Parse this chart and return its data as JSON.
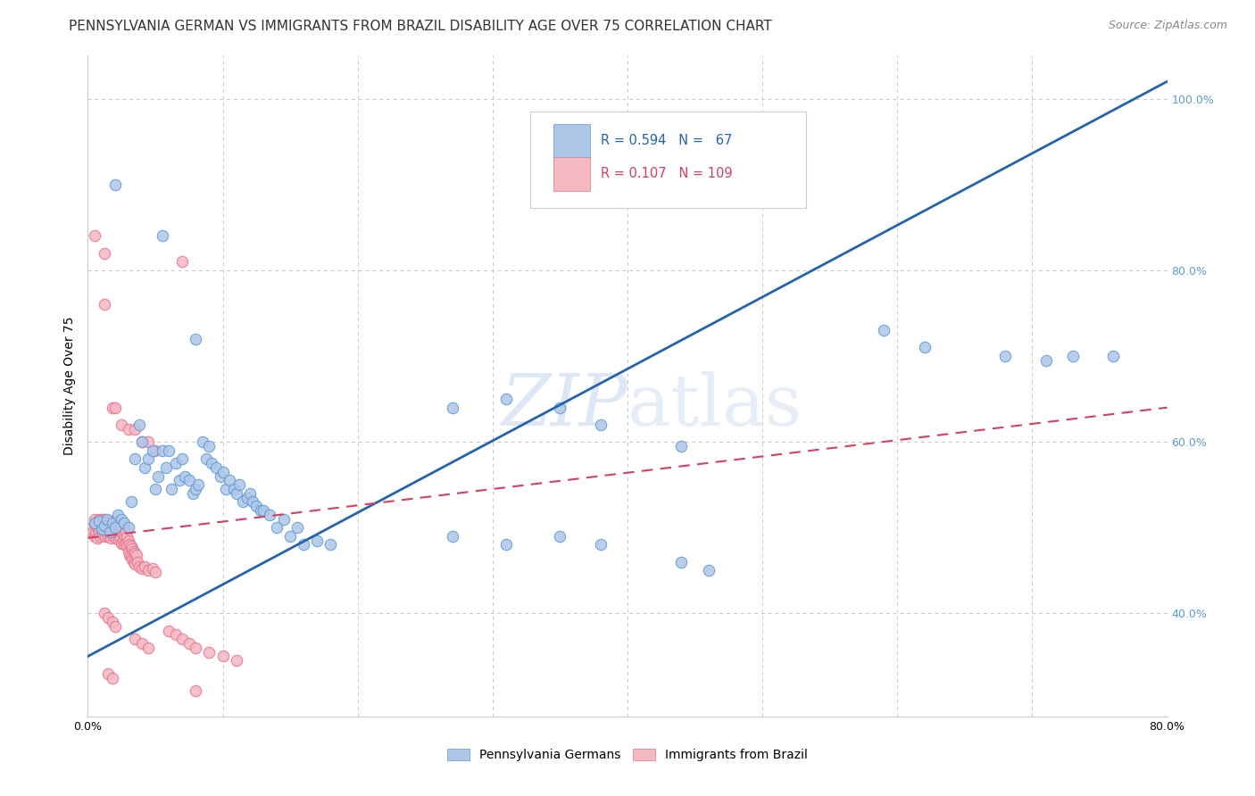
{
  "title": "PENNSYLVANIA GERMAN VS IMMIGRANTS FROM BRAZIL DISABILITY AGE OVER 75 CORRELATION CHART",
  "source": "Source: ZipAtlas.com",
  "ylabel": "Disability Age Over 75",
  "x_min": 0.0,
  "x_max": 0.8,
  "y_min": 0.28,
  "y_max": 1.05,
  "blue_color": "#aec6e8",
  "blue_edge_color": "#5b9bd5",
  "pink_color": "#f4b8c1",
  "pink_edge_color": "#e87090",
  "blue_line_color": "#2563ae",
  "pink_line_color": "#d44060",
  "watermark_color": "#c8d8ee",
  "grid_color": "#c8c8c8",
  "background_color": "#ffffff",
  "right_tick_color": "#5b9bd5",
  "title_color": "#333333",
  "source_color": "#888888",
  "blue_line_x": [
    0.0,
    0.8
  ],
  "blue_line_y": [
    0.35,
    1.02
  ],
  "pink_line_x": [
    0.0,
    0.8
  ],
  "pink_line_y": [
    0.488,
    0.64
  ],
  "blue_scatter": [
    [
      0.005,
      0.505
    ],
    [
      0.008,
      0.508
    ],
    [
      0.01,
      0.498
    ],
    [
      0.012,
      0.502
    ],
    [
      0.014,
      0.51
    ],
    [
      0.016,
      0.495
    ],
    [
      0.018,
      0.505
    ],
    [
      0.02,
      0.5
    ],
    [
      0.022,
      0.515
    ],
    [
      0.025,
      0.51
    ],
    [
      0.027,
      0.505
    ],
    [
      0.03,
      0.5
    ],
    [
      0.032,
      0.53
    ],
    [
      0.035,
      0.58
    ],
    [
      0.038,
      0.62
    ],
    [
      0.04,
      0.6
    ],
    [
      0.042,
      0.57
    ],
    [
      0.045,
      0.58
    ],
    [
      0.048,
      0.59
    ],
    [
      0.05,
      0.545
    ],
    [
      0.052,
      0.56
    ],
    [
      0.055,
      0.59
    ],
    [
      0.058,
      0.57
    ],
    [
      0.06,
      0.59
    ],
    [
      0.062,
      0.545
    ],
    [
      0.065,
      0.575
    ],
    [
      0.068,
      0.555
    ],
    [
      0.07,
      0.58
    ],
    [
      0.072,
      0.56
    ],
    [
      0.075,
      0.555
    ],
    [
      0.078,
      0.54
    ],
    [
      0.08,
      0.545
    ],
    [
      0.082,
      0.55
    ],
    [
      0.085,
      0.6
    ],
    [
      0.088,
      0.58
    ],
    [
      0.09,
      0.595
    ],
    [
      0.092,
      0.575
    ],
    [
      0.095,
      0.57
    ],
    [
      0.098,
      0.56
    ],
    [
      0.1,
      0.565
    ],
    [
      0.102,
      0.545
    ],
    [
      0.105,
      0.555
    ],
    [
      0.108,
      0.545
    ],
    [
      0.11,
      0.54
    ],
    [
      0.112,
      0.55
    ],
    [
      0.115,
      0.53
    ],
    [
      0.118,
      0.535
    ],
    [
      0.12,
      0.54
    ],
    [
      0.122,
      0.53
    ],
    [
      0.125,
      0.525
    ],
    [
      0.128,
      0.52
    ],
    [
      0.13,
      0.52
    ],
    [
      0.135,
      0.515
    ],
    [
      0.14,
      0.5
    ],
    [
      0.145,
      0.51
    ],
    [
      0.15,
      0.49
    ],
    [
      0.155,
      0.5
    ],
    [
      0.16,
      0.48
    ],
    [
      0.17,
      0.485
    ],
    [
      0.18,
      0.48
    ],
    [
      0.02,
      0.9
    ],
    [
      0.055,
      0.84
    ],
    [
      0.08,
      0.72
    ],
    [
      0.27,
      0.64
    ],
    [
      0.31,
      0.65
    ],
    [
      0.35,
      0.64
    ],
    [
      0.38,
      0.62
    ],
    [
      0.44,
      0.595
    ],
    [
      0.27,
      0.49
    ],
    [
      0.31,
      0.48
    ],
    [
      0.35,
      0.49
    ],
    [
      0.38,
      0.48
    ],
    [
      0.44,
      0.46
    ],
    [
      0.46,
      0.45
    ],
    [
      0.59,
      0.73
    ],
    [
      0.62,
      0.71
    ],
    [
      0.68,
      0.7
    ],
    [
      0.71,
      0.695
    ],
    [
      0.73,
      0.7
    ],
    [
      0.76,
      0.7
    ]
  ],
  "pink_scatter": [
    [
      0.003,
      0.5
    ],
    [
      0.004,
      0.495
    ],
    [
      0.005,
      0.51
    ],
    [
      0.005,
      0.49
    ],
    [
      0.006,
      0.505
    ],
    [
      0.006,
      0.495
    ],
    [
      0.007,
      0.5
    ],
    [
      0.007,
      0.488
    ],
    [
      0.008,
      0.51
    ],
    [
      0.008,
      0.495
    ],
    [
      0.009,
      0.505
    ],
    [
      0.009,
      0.49
    ],
    [
      0.01,
      0.51
    ],
    [
      0.01,
      0.498
    ],
    [
      0.011,
      0.505
    ],
    [
      0.011,
      0.492
    ],
    [
      0.012,
      0.51
    ],
    [
      0.012,
      0.495
    ],
    [
      0.013,
      0.505
    ],
    [
      0.013,
      0.49
    ],
    [
      0.014,
      0.508
    ],
    [
      0.014,
      0.495
    ],
    [
      0.015,
      0.502
    ],
    [
      0.015,
      0.49
    ],
    [
      0.016,
      0.505
    ],
    [
      0.016,
      0.492
    ],
    [
      0.017,
      0.5
    ],
    [
      0.017,
      0.488
    ],
    [
      0.018,
      0.508
    ],
    [
      0.018,
      0.494
    ],
    [
      0.019,
      0.502
    ],
    [
      0.019,
      0.49
    ],
    [
      0.02,
      0.505
    ],
    [
      0.02,
      0.492
    ],
    [
      0.021,
      0.5
    ],
    [
      0.021,
      0.488
    ],
    [
      0.022,
      0.505
    ],
    [
      0.022,
      0.492
    ],
    [
      0.023,
      0.498
    ],
    [
      0.023,
      0.486
    ],
    [
      0.024,
      0.5
    ],
    [
      0.024,
      0.488
    ],
    [
      0.025,
      0.495
    ],
    [
      0.025,
      0.482
    ],
    [
      0.026,
      0.498
    ],
    [
      0.026,
      0.485
    ],
    [
      0.027,
      0.492
    ],
    [
      0.027,
      0.48
    ],
    [
      0.028,
      0.495
    ],
    [
      0.028,
      0.482
    ],
    [
      0.029,
      0.49
    ],
    [
      0.029,
      0.478
    ],
    [
      0.03,
      0.485
    ],
    [
      0.03,
      0.472
    ],
    [
      0.031,
      0.48
    ],
    [
      0.031,
      0.468
    ],
    [
      0.032,
      0.478
    ],
    [
      0.032,
      0.466
    ],
    [
      0.033,
      0.475
    ],
    [
      0.033,
      0.463
    ],
    [
      0.034,
      0.472
    ],
    [
      0.034,
      0.46
    ],
    [
      0.035,
      0.47
    ],
    [
      0.035,
      0.458
    ],
    [
      0.036,
      0.468
    ],
    [
      0.037,
      0.46
    ],
    [
      0.038,
      0.455
    ],
    [
      0.04,
      0.452
    ],
    [
      0.042,
      0.455
    ],
    [
      0.045,
      0.45
    ],
    [
      0.048,
      0.452
    ],
    [
      0.05,
      0.448
    ],
    [
      0.012,
      0.76
    ],
    [
      0.018,
      0.64
    ],
    [
      0.02,
      0.64
    ],
    [
      0.025,
      0.62
    ],
    [
      0.03,
      0.615
    ],
    [
      0.035,
      0.615
    ],
    [
      0.04,
      0.6
    ],
    [
      0.045,
      0.6
    ],
    [
      0.05,
      0.59
    ],
    [
      0.012,
      0.4
    ],
    [
      0.015,
      0.395
    ],
    [
      0.018,
      0.39
    ],
    [
      0.02,
      0.385
    ],
    [
      0.015,
      0.33
    ],
    [
      0.018,
      0.325
    ],
    [
      0.035,
      0.37
    ],
    [
      0.04,
      0.365
    ],
    [
      0.045,
      0.36
    ],
    [
      0.06,
      0.38
    ],
    [
      0.065,
      0.375
    ],
    [
      0.07,
      0.37
    ],
    [
      0.075,
      0.365
    ],
    [
      0.08,
      0.36
    ],
    [
      0.09,
      0.355
    ],
    [
      0.1,
      0.35
    ],
    [
      0.11,
      0.345
    ],
    [
      0.005,
      0.84
    ],
    [
      0.012,
      0.82
    ],
    [
      0.07,
      0.81
    ],
    [
      0.08,
      0.31
    ]
  ],
  "ytick_positions": [
    0.4,
    0.6,
    0.8,
    1.0
  ],
  "ytick_labels": [
    "40.0%",
    "60.0%",
    "80.0%",
    "100.0%"
  ],
  "xtick_positions": [
    0.0,
    0.1,
    0.2,
    0.3,
    0.4,
    0.5,
    0.6,
    0.7,
    0.8
  ],
  "xtick_labels": [
    "0.0%",
    "",
    "",
    "",
    "",
    "",
    "",
    "",
    "80.0%"
  ],
  "title_fontsize": 11,
  "axis_label_fontsize": 10,
  "tick_fontsize": 9,
  "source_fontsize": 9,
  "scatter_size": 80,
  "scatter_alpha": 0.85,
  "scatter_linewidth": 0.8,
  "blue_trend_linewidth": 2.0,
  "pink_trend_linewidth": 1.5
}
